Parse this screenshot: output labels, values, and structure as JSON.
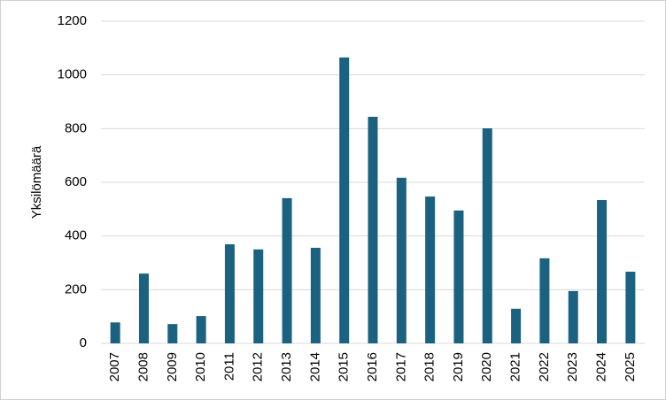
{
  "chart_data": {
    "type": "bar",
    "y_label": "Yksilömäärä",
    "categories": [
      "2007",
      "2008",
      "2009",
      "2010",
      "2011",
      "2012",
      "2013",
      "2014",
      "2015",
      "2016",
      "2017",
      "2018",
      "2019",
      "2020",
      "2021",
      "2022",
      "2023",
      "2024",
      "2025"
    ],
    "values": [
      78,
      260,
      72,
      102,
      369,
      350,
      541,
      356,
      1065,
      844,
      617,
      547,
      495,
      801,
      129,
      317,
      195,
      534,
      267
    ],
    "color": "#1b6180",
    "ylim": [
      0,
      1200
    ],
    "yticks": [
      0,
      200,
      400,
      600,
      800,
      1000,
      1200
    ],
    "grid": true
  }
}
